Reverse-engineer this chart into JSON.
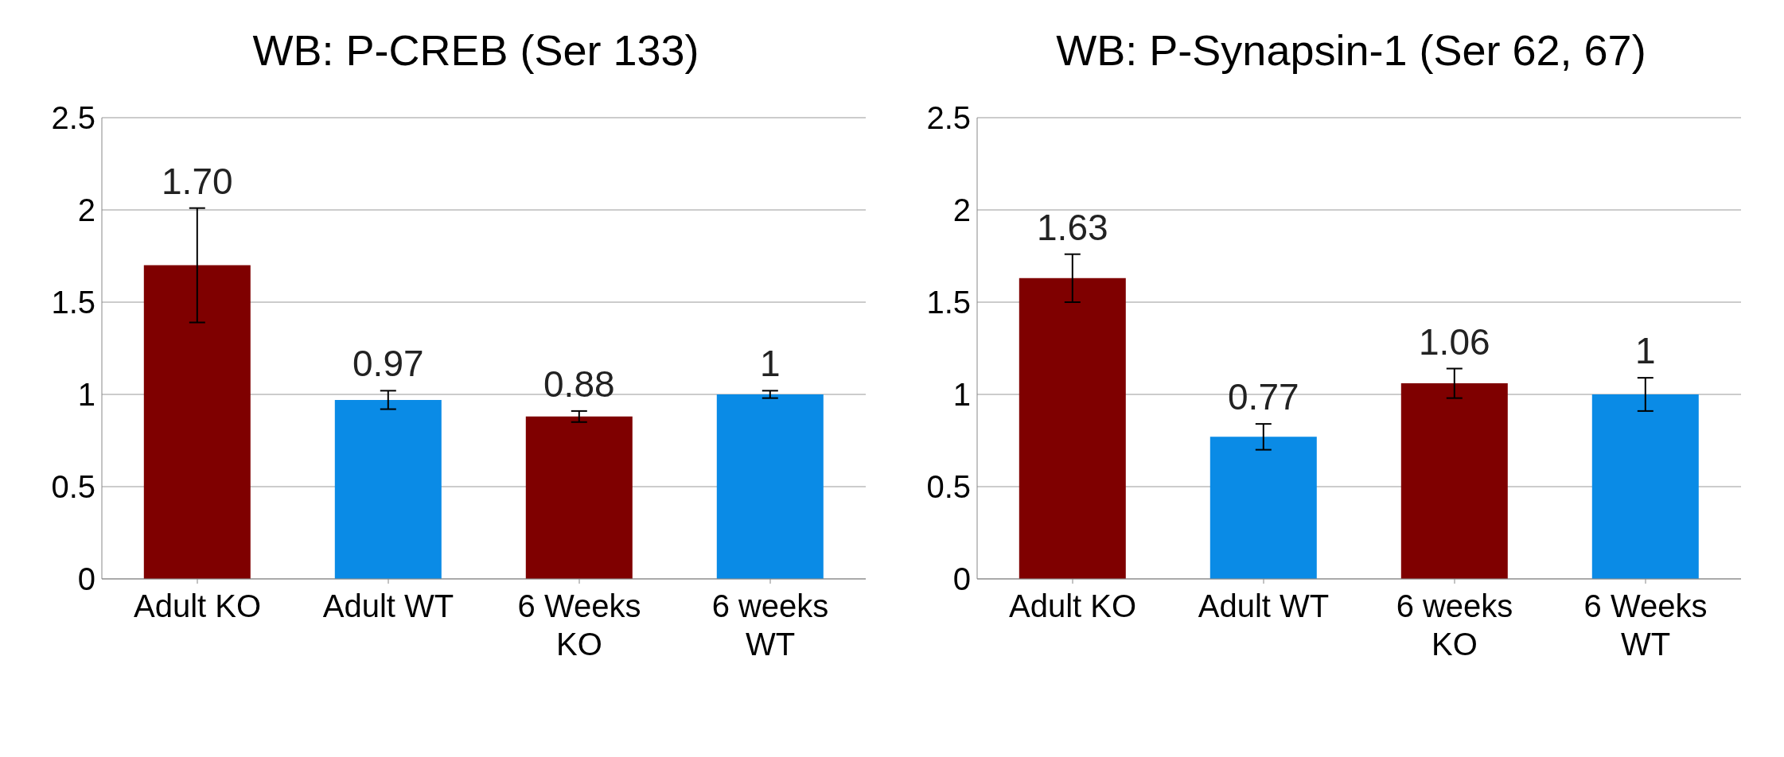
{
  "chart_data": [
    {
      "type": "bar",
      "title": "WB: P-CREB (Ser 133)",
      "categories": [
        "Adult KO",
        "Adult WT",
        "6 Weeks KO",
        "6 weeks WT"
      ],
      "values": [
        1.7,
        0.97,
        0.88,
        1
      ],
      "errors": [
        0.31,
        0.05,
        0.03,
        0.02
      ],
      "colors": [
        "#7f0000",
        "#0a8be6",
        "#7f0000",
        "#0a8be6"
      ],
      "value_labels": [
        "1.70",
        "0.97",
        "0.88",
        "1"
      ],
      "ylim": [
        0,
        2.5
      ],
      "yticks": [
        0,
        0.5,
        1,
        1.5,
        2,
        2.5
      ],
      "grid": "y"
    },
    {
      "type": "bar",
      "title": "WB: P-Synapsin-1 (Ser 62, 67)",
      "categories": [
        "Adult KO",
        "Adult WT",
        "6 weeks KO",
        "6 Weeks WT"
      ],
      "values": [
        1.63,
        0.77,
        1.06,
        1
      ],
      "errors": [
        0.13,
        0.07,
        0.08,
        0.09
      ],
      "colors": [
        "#7f0000",
        "#0a8be6",
        "#7f0000",
        "#0a8be6"
      ],
      "value_labels": [
        "1.63",
        "0.77",
        "1.06",
        "1"
      ],
      "ylim": [
        0,
        2.5
      ],
      "yticks": [
        0,
        0.5,
        1,
        1.5,
        2,
        2.5
      ],
      "grid": "y"
    }
  ]
}
